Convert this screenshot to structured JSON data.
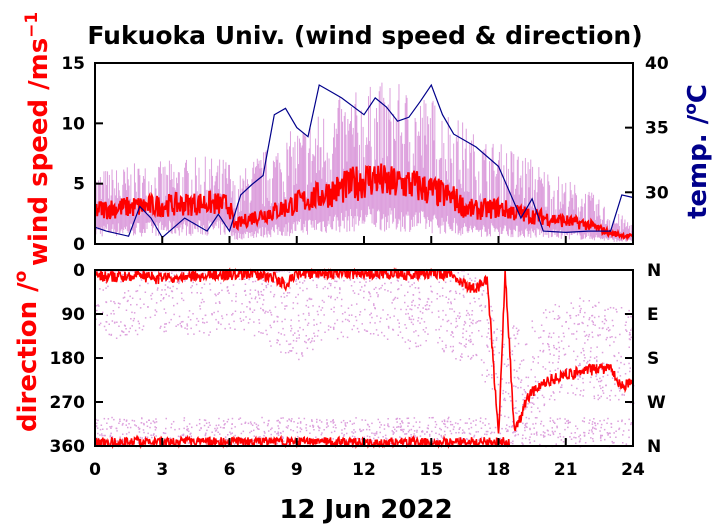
{
  "title": "Fukuoka Univ. (wind speed & direction)",
  "date_label": "12 Jun 2022",
  "colors": {
    "speed": "#ff0000",
    "gust": "#dda0dd",
    "temp": "#00008b",
    "axis": "#000000"
  },
  "top_panel": {
    "ylabel_left": "wind speed /ms",
    "ylabel_left_sup": "−1",
    "ylabel_right": "temp. /",
    "ylabel_right_deg": "o",
    "ylabel_right_unit": "C",
    "yticks_left": [
      "0",
      "5",
      "10",
      "15"
    ],
    "yticks_right": [
      "30",
      "35",
      "40"
    ]
  },
  "bottom_panel": {
    "ylabel_left": "direction /",
    "ylabel_left_deg": "o",
    "yticks_left": [
      "0",
      "90",
      "180",
      "270",
      "360"
    ],
    "yticks_right": [
      "N",
      "E",
      "S",
      "W",
      "N"
    ]
  },
  "xticks": [
    "0",
    "3",
    "6",
    "9",
    "12",
    "15",
    "18",
    "21",
    "24"
  ],
  "chart_data": [
    {
      "type": "line",
      "panel": "top",
      "xlim": [
        0,
        24
      ],
      "ylim_left": [
        0,
        15
      ],
      "ylim_right": [
        26,
        40
      ],
      "series": [
        {
          "role": "wind-speed",
          "axis": "left",
          "x": [
            0,
            1,
            2,
            3,
            4,
            5,
            6,
            6.2,
            7,
            8,
            9,
            10,
            11,
            12,
            12.5,
            13,
            14,
            15,
            16,
            16.5,
            17,
            18,
            19,
            20,
            21,
            22,
            23,
            24
          ],
          "y": [
            2.8,
            3.0,
            3.1,
            3.2,
            3.3,
            3.4,
            3.2,
            1.5,
            2.2,
            2.7,
            3.4,
            4.0,
            4.6,
            5.3,
            5.5,
            5.0,
            5.0,
            4.4,
            3.8,
            3.0,
            2.8,
            3.0,
            2.5,
            2.2,
            1.9,
            1.6,
            0.9,
            0.6
          ]
        },
        {
          "role": "gust",
          "axis": "left",
          "x": [
            0,
            1,
            2,
            3,
            4,
            5,
            6,
            6.2,
            7,
            8,
            9,
            10,
            11,
            12,
            13,
            14,
            15,
            16,
            17,
            18,
            19,
            20,
            21,
            22,
            23,
            24
          ],
          "y": [
            4.8,
            5.0,
            5.2,
            5.3,
            5.5,
            5.6,
            5.5,
            4.0,
            5.5,
            6.5,
            7.5,
            8.5,
            9.5,
            10.0,
            10.5,
            10.0,
            9.5,
            8.5,
            7.0,
            6.5,
            6.0,
            5.0,
            4.2,
            3.5,
            2.2,
            1.5
          ]
        },
        {
          "role": "temperature",
          "axis": "right",
          "x": [
            0,
            0.5,
            1.5,
            2,
            2.5,
            3,
            4,
            5,
            5.5,
            6,
            6.5,
            7,
            7.5,
            8,
            8.5,
            9,
            9.5,
            10,
            10.5,
            11,
            12,
            12.5,
            13,
            13.5,
            14,
            14.5,
            15,
            15.5,
            16,
            17,
            18,
            19,
            19.5,
            20,
            21,
            22,
            23,
            23.5,
            24
          ],
          "y": [
            27.3,
            27.0,
            26.6,
            28.9,
            28.0,
            26.5,
            28.0,
            27.0,
            28.3,
            27.0,
            29.8,
            30.6,
            31.3,
            36.0,
            36.5,
            35.0,
            34.3,
            38.3,
            37.8,
            37.3,
            36.0,
            37.3,
            36.6,
            35.5,
            35.8,
            37.0,
            38.3,
            36.0,
            34.5,
            33.5,
            32.0,
            28.0,
            29.5,
            27.0,
            26.9,
            27.0,
            27.0,
            29.8,
            29.6
          ]
        }
      ]
    },
    {
      "type": "scatter",
      "panel": "bottom",
      "xlim": [
        0,
        24
      ],
      "ylim": [
        0,
        360
      ],
      "series": [
        {
          "role": "direction-1min",
          "x": [
            0,
            1,
            2,
            3,
            4,
            5,
            6,
            7,
            8,
            8.5,
            9,
            9.5,
            10,
            11,
            12,
            13,
            14,
            15,
            16,
            16.5,
            17,
            17.5,
            18,
            18.3,
            18.7,
            19,
            19.2,
            19.5,
            20,
            21,
            22,
            23,
            23.5,
            24
          ],
          "y": [
            10,
            15,
            12,
            18,
            14,
            12,
            10,
            5,
            15,
            30,
            10,
            8,
            6,
            5,
            8,
            6,
            10,
            5,
            10,
            30,
            40,
            15,
            340,
            5,
            330,
            300,
            270,
            250,
            230,
            215,
            205,
            200,
            240,
            230
          ]
        },
        {
          "role": "direction-scatter",
          "x": [
            0,
            1,
            2,
            3,
            4,
            5,
            6,
            7,
            8,
            9,
            10,
            11,
            12,
            13,
            14,
            15,
            16,
            17,
            18,
            19,
            20,
            21,
            22,
            23,
            24
          ],
          "y": [
            20,
            40,
            30,
            25,
            30,
            35,
            20,
            30,
            60,
            90,
            50,
            40,
            30,
            40,
            60,
            50,
            80,
            100,
            200,
            220,
            180,
            150,
            160,
            170,
            180
          ]
        }
      ]
    }
  ]
}
